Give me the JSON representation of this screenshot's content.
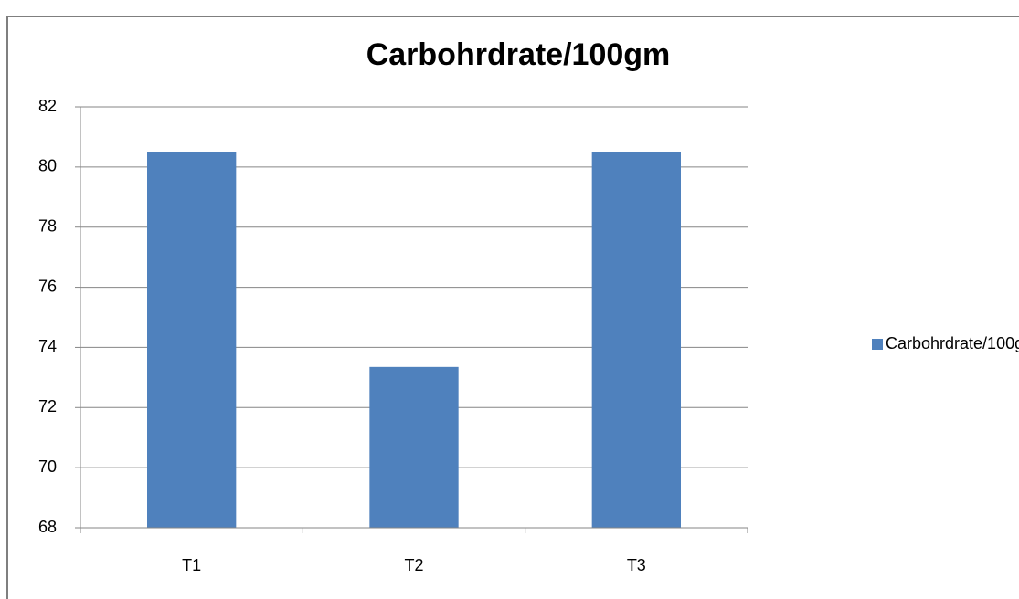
{
  "chart_data": {
    "type": "bar",
    "title": "Carbohrdrate/100gm",
    "categories": [
      "T1",
      "T2",
      "T3"
    ],
    "series": [
      {
        "name": "Carbohrdrate/100gm",
        "color": "#4f81bd",
        "values": [
          80.5,
          73.35,
          80.5
        ]
      }
    ],
    "ylim": [
      68,
      82
    ],
    "yticks": [
      68,
      70,
      72,
      74,
      76,
      78,
      80,
      82
    ],
    "grid": true,
    "legend": "right"
  }
}
